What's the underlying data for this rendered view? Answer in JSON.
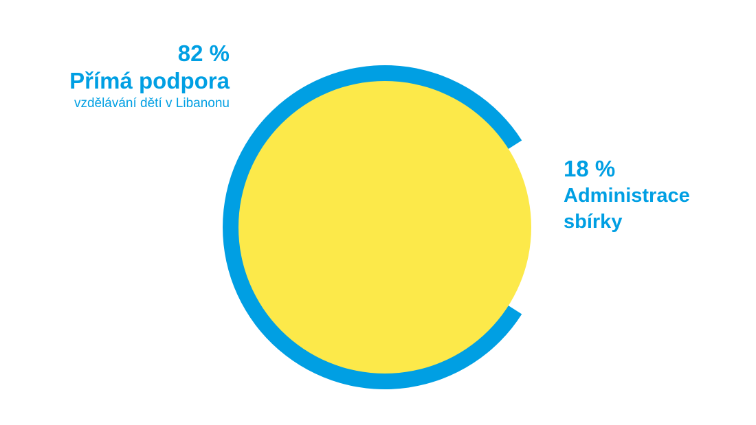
{
  "colors": {
    "ring": "#009fe3",
    "center": "#fce94a",
    "text": "#009fe3",
    "background": "#ffffff"
  },
  "chart_data": {
    "type": "pie",
    "categories": [
      "Přímá podpora",
      "Administrace sbírky"
    ],
    "values": [
      82,
      18
    ],
    "labels": {
      "primary": {
        "value": "82 %",
        "title": "Přímá podpora",
        "subtitle": "vzdělávání dětí v Libanonu"
      },
      "secondary": {
        "value": "18 %",
        "title_line1": "Administrace",
        "title_line2": "sbírky"
      }
    }
  }
}
